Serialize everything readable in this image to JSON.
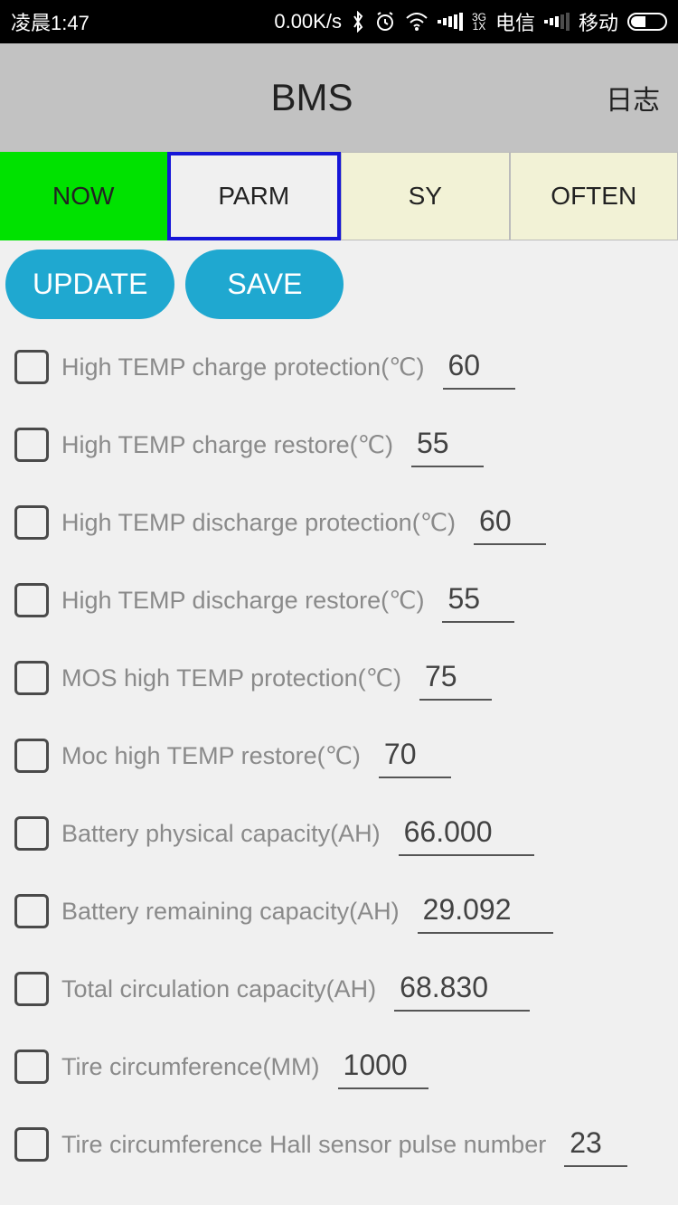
{
  "status": {
    "time": "凌晨1:47",
    "speed": "0.00K/s",
    "carrier1": "电信",
    "carrier2": "移动",
    "net_label": "3G",
    "net_sub": "1X"
  },
  "header": {
    "title": "BMS",
    "log": "日志"
  },
  "tabs": {
    "now": "NOW",
    "parm": "PARM",
    "sy": "SY",
    "often": "OFTEN"
  },
  "actions": {
    "update": "UPDATE",
    "save": "SAVE"
  },
  "params": [
    {
      "label": "High TEMP charge protection(℃)",
      "value": "60",
      "vw": "80"
    },
    {
      "label": "High TEMP charge restore(℃)",
      "value": "55",
      "vw": "80"
    },
    {
      "label": "High TEMP discharge protection(℃)",
      "value": "60",
      "vw": "80"
    },
    {
      "label": "High TEMP discharge restore(℃)",
      "value": "55",
      "vw": "80"
    },
    {
      "label": "MOS high TEMP protection(℃)",
      "value": "75",
      "vw": "80"
    },
    {
      "label": "Moc high TEMP restore(℃)",
      "value": "70",
      "vw": "80"
    },
    {
      "label": "Battery physical capacity(AH)",
      "value": "66.000",
      "vw": "150"
    },
    {
      "label": "Battery remaining capacity(AH)",
      "value": "29.092",
      "vw": "150"
    },
    {
      "label": "Total circulation capacity(AH)",
      "value": "68.830",
      "vw": "150"
    },
    {
      "label": "Tire circumference(MM)",
      "value": "1000",
      "vw": "100"
    },
    {
      "label": "Tire circumference Hall sensor pulse number",
      "value": "23",
      "vw": "60"
    }
  ]
}
